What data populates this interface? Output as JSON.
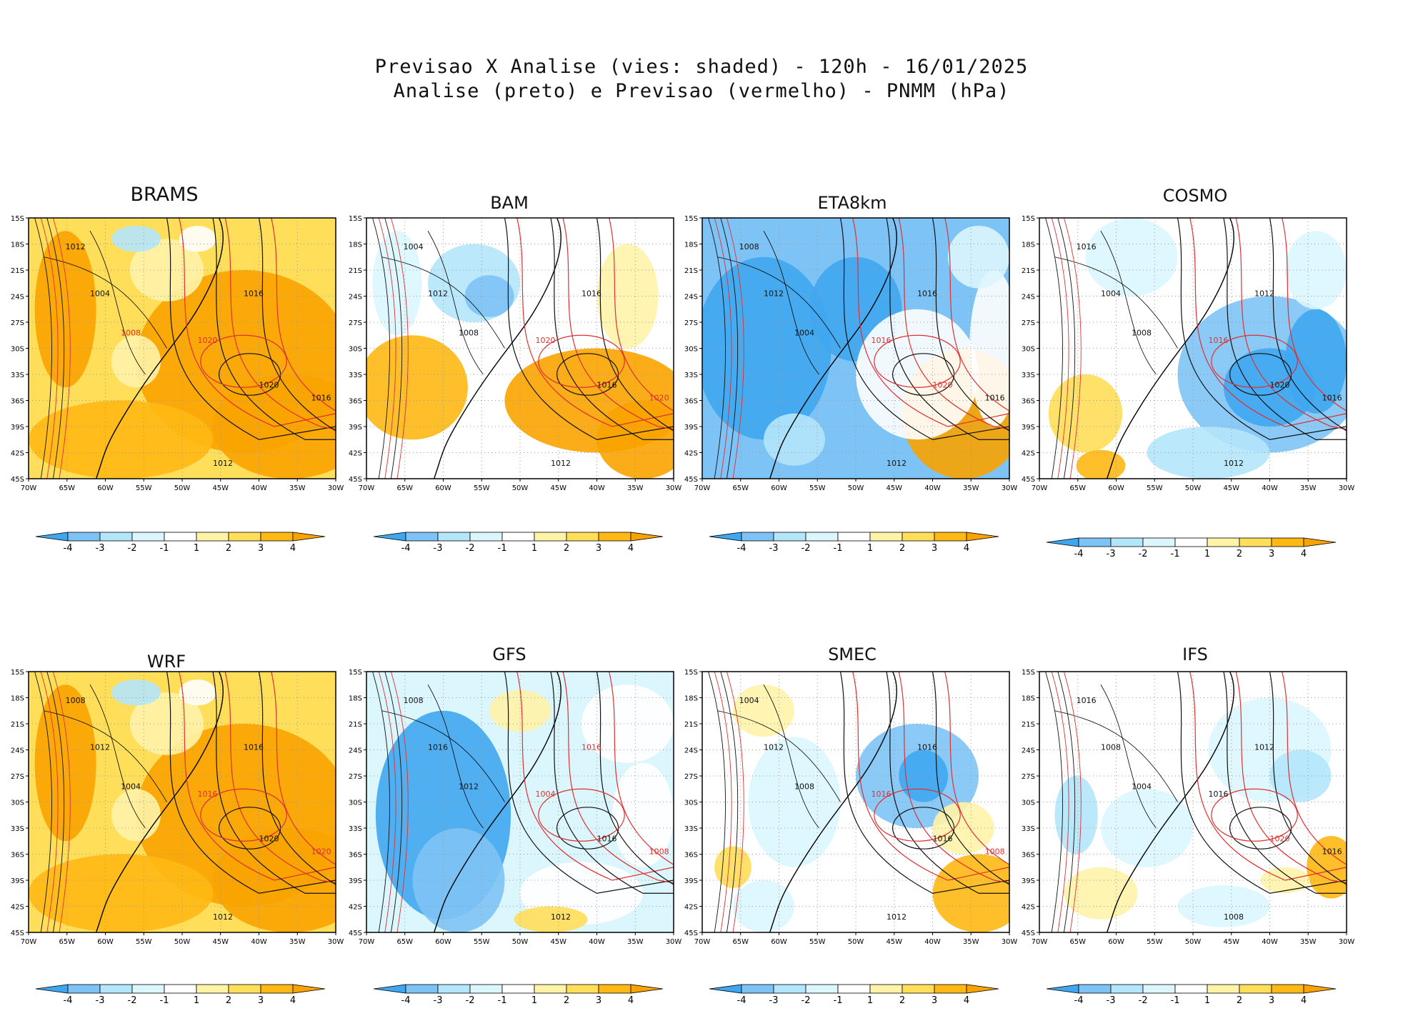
{
  "figure": {
    "title_line1": "Previsao X Analise (vies: shaded) - 120h - 16/01/2025",
    "title_line2": "Analise (preto) e Previsao (vermelho) - PNMM (hPa)"
  },
  "axes": {
    "lat_labels": [
      "15S",
      "18S",
      "21S",
      "24S",
      "27S",
      "30S",
      "33S",
      "36S",
      "39S",
      "42S",
      "45S"
    ],
    "lon_labels": [
      "70W",
      "65W",
      "60W",
      "55W",
      "50W",
      "45W",
      "40W",
      "35W",
      "30W"
    ]
  },
  "colorbar": {
    "labels": [
      "-4",
      "-3",
      "-2",
      "-1",
      "1",
      "2",
      "3",
      "4"
    ],
    "colors": [
      "#3fa7f0",
      "#7ec3f6",
      "#b4e6fb",
      "#dcf6fe",
      "#ffffff",
      "#fff3a8",
      "#ffde5a",
      "#ffb814",
      "#f9a300"
    ]
  },
  "colors": {
    "analysis_contour": "#111111",
    "forecast_contour": "#e03030",
    "coast": "#000000"
  },
  "models": [
    {
      "name": "BRAMS",
      "bias": "warm",
      "labels": [
        {
          "t": "1012",
          "c": "k"
        },
        {
          "t": "1008",
          "c": "r"
        },
        {
          "t": "1004",
          "c": "k"
        },
        {
          "t": "1016",
          "c": "k"
        },
        {
          "t": "1020",
          "c": "r"
        },
        {
          "t": "1020",
          "c": "k"
        },
        {
          "t": "1016",
          "c": "k"
        },
        {
          "t": "1012",
          "c": "k"
        }
      ]
    },
    {
      "name": "BAM",
      "bias": "mixed",
      "labels": [
        {
          "t": "1004",
          "c": "k"
        },
        {
          "t": "1008",
          "c": "k"
        },
        {
          "t": "1012",
          "c": "k"
        },
        {
          "t": "1016",
          "c": "k"
        },
        {
          "t": "1020",
          "c": "r"
        },
        {
          "t": "1016",
          "c": "k"
        },
        {
          "t": "1020",
          "c": "r"
        },
        {
          "t": "1012",
          "c": "k"
        }
      ]
    },
    {
      "name": "ETA8km",
      "bias": "cold",
      "labels": [
        {
          "t": "1008",
          "c": "k"
        },
        {
          "t": "1004",
          "c": "k"
        },
        {
          "t": "1012",
          "c": "k"
        },
        {
          "t": "1016",
          "c": "k"
        },
        {
          "t": "1016",
          "c": "r"
        },
        {
          "t": "1020",
          "c": "r"
        },
        {
          "t": "1016",
          "c": "k"
        },
        {
          "t": "1012",
          "c": "k"
        }
      ]
    },
    {
      "name": "COSMO",
      "bias": "cold-east",
      "labels": [
        {
          "t": "1016",
          "c": "k"
        },
        {
          "t": "1008",
          "c": "k"
        },
        {
          "t": "1004",
          "c": "k"
        },
        {
          "t": "1012",
          "c": "k"
        },
        {
          "t": "1016",
          "c": "r"
        },
        {
          "t": "1020",
          "c": "k"
        },
        {
          "t": "1016",
          "c": "k"
        },
        {
          "t": "1012",
          "c": "k"
        }
      ]
    },
    {
      "name": "WRF",
      "bias": "warm",
      "labels": [
        {
          "t": "1008",
          "c": "k"
        },
        {
          "t": "1004",
          "c": "k"
        },
        {
          "t": "1012",
          "c": "k"
        },
        {
          "t": "1016",
          "c": "k"
        },
        {
          "t": "1016",
          "c": "r"
        },
        {
          "t": "1020",
          "c": "k"
        },
        {
          "t": "1020",
          "c": "r"
        },
        {
          "t": "1012",
          "c": "k"
        }
      ]
    },
    {
      "name": "GFS",
      "bias": "cold-west",
      "labels": [
        {
          "t": "1008",
          "c": "k"
        },
        {
          "t": "1012",
          "c": "k"
        },
        {
          "t": "1016",
          "c": "k"
        },
        {
          "t": "1016",
          "c": "r"
        },
        {
          "t": "1004",
          "c": "r"
        },
        {
          "t": "1016",
          "c": "k"
        },
        {
          "t": "1008",
          "c": "r"
        },
        {
          "t": "1012",
          "c": "k"
        }
      ]
    },
    {
      "name": "SMEC",
      "bias": "cold-center",
      "labels": [
        {
          "t": "1004",
          "c": "k"
        },
        {
          "t": "1008",
          "c": "k"
        },
        {
          "t": "1012",
          "c": "k"
        },
        {
          "t": "1016",
          "c": "k"
        },
        {
          "t": "1016",
          "c": "r"
        },
        {
          "t": "1016",
          "c": "k"
        },
        {
          "t": "1008",
          "c": "r"
        },
        {
          "t": "1012",
          "c": "k"
        }
      ]
    },
    {
      "name": "IFS",
      "bias": "neutral",
      "labels": [
        {
          "t": "1016",
          "c": "k"
        },
        {
          "t": "1004",
          "c": "k"
        },
        {
          "t": "1008",
          "c": "k"
        },
        {
          "t": "1012",
          "c": "k"
        },
        {
          "t": "1016",
          "c": "k"
        },
        {
          "t": "1020",
          "c": "r"
        },
        {
          "t": "1016",
          "c": "k"
        },
        {
          "t": "1008",
          "c": "k"
        }
      ]
    }
  ]
}
